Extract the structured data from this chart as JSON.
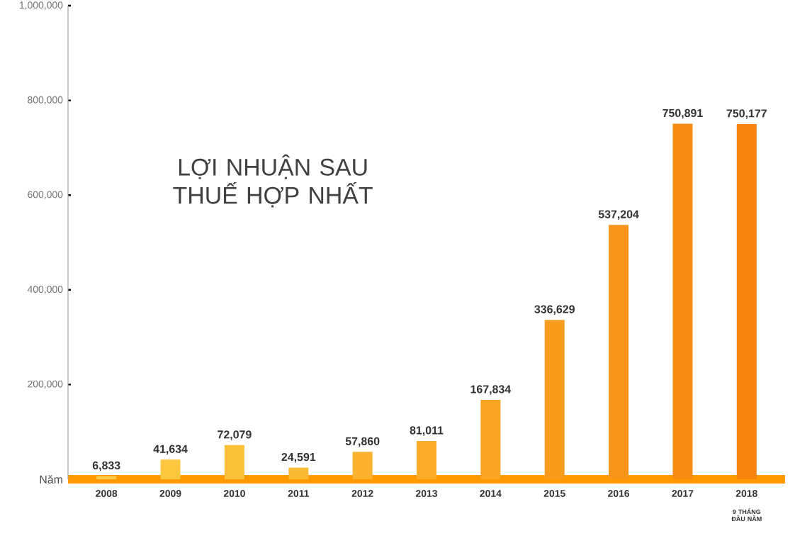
{
  "chart_data": {
    "type": "bar",
    "title": "LỢI NHUẬN SAU THUẾ HỢP NHẤT",
    "xlabel": "Năm",
    "categories": [
      "2008",
      "2009",
      "2010",
      "2011",
      "2012",
      "2013",
      "2014",
      "2015",
      "2016",
      "2017",
      "2018"
    ],
    "values": [
      6833,
      41634,
      72079,
      24591,
      57860,
      81011,
      167834,
      336629,
      537204,
      750891,
      750177
    ],
    "colors": [
      "#fdcb45",
      "#fcc63f",
      "#fbc03a",
      "#fbb934",
      "#fab22f",
      "#faab29",
      "#f9a424",
      "#f99c1e",
      "#f89419",
      "#f88b14",
      "#f7830f"
    ],
    "ylim": [
      0,
      1000000
    ],
    "yticks": [
      {
        "value": 200000,
        "label": "200,000"
      },
      {
        "value": 400000,
        "label": "400,000"
      },
      {
        "value": 600000,
        "label": "600,000"
      },
      {
        "value": 800000,
        "label": "800,000"
      },
      {
        "value": 1000000,
        "label": "1,000,000"
      }
    ],
    "value_labels": [
      "6,833",
      "41,634",
      "72,079",
      "24,591",
      "57,860",
      "81,011",
      "167,834",
      "336,629",
      "537,204",
      "750,891",
      "750,177"
    ],
    "annotations": [
      "9 THÁNG ĐẦU NĂM"
    ]
  }
}
